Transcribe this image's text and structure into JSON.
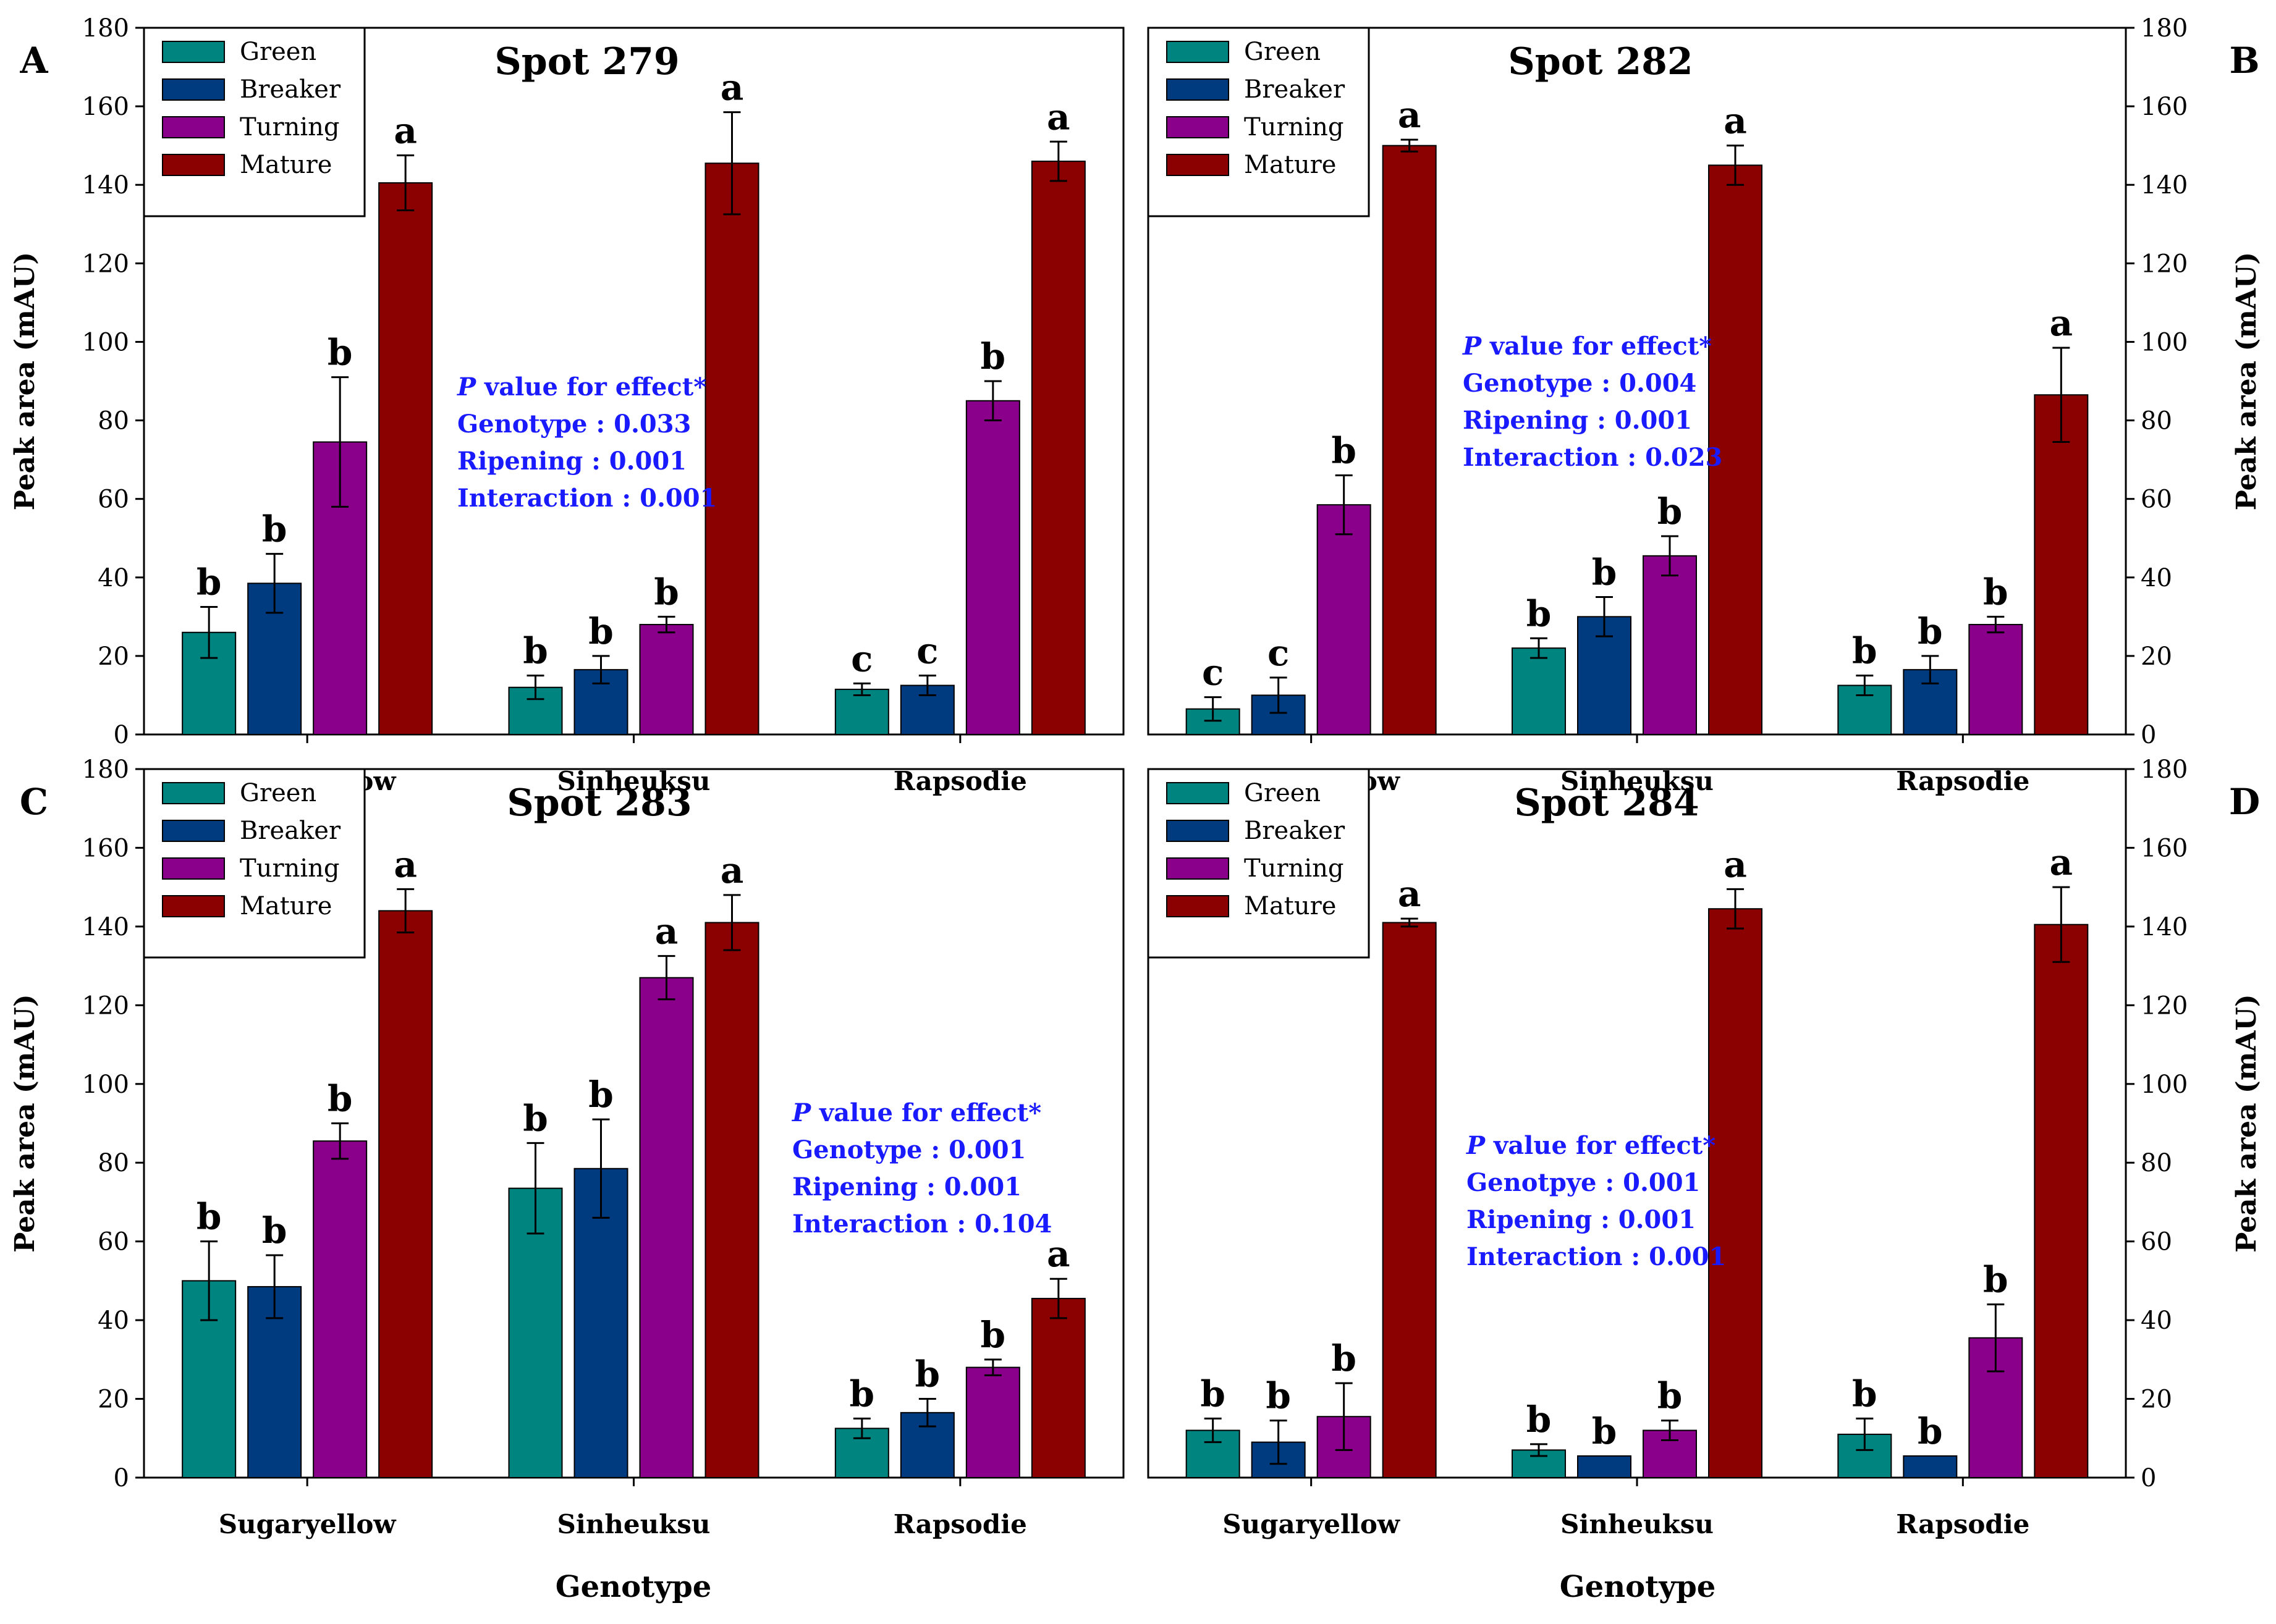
{
  "colors": {
    "Green": "#00847f",
    "Breaker": "#003b80",
    "Turning": "#8b008b",
    "Mature": "#8b0000"
  },
  "legend": [
    "Green",
    "Breaker",
    "Turning",
    "Mature"
  ],
  "x_title": "Genotype",
  "chart_data": [
    {
      "type": "bar",
      "panel": "A",
      "title": "Spot 279",
      "ylabel": "Peak area (mAU)",
      "ylim": [
        0,
        180
      ],
      "yticks": [
        0,
        20,
        40,
        60,
        80,
        100,
        120,
        140,
        160,
        180
      ],
      "categories": [
        "Sugaryellow",
        "Sinheuksu",
        "Rapsodie"
      ],
      "series": [
        {
          "name": "Green",
          "values": [
            26,
            12,
            11.5
          ],
          "errors": [
            6.5,
            3,
            1.5
          ],
          "letters": [
            "b",
            "b",
            "c"
          ]
        },
        {
          "name": "Breaker",
          "values": [
            38.5,
            16.5,
            12.5
          ],
          "errors": [
            7.5,
            3.5,
            2.5
          ],
          "letters": [
            "b",
            "b",
            "c"
          ]
        },
        {
          "name": "Turning",
          "values": [
            74.5,
            28,
            85
          ],
          "errors": [
            16.5,
            2,
            5
          ],
          "letters": [
            "b",
            "b",
            "b"
          ]
        },
        {
          "name": "Mature",
          "values": [
            140.5,
            145.5,
            146
          ],
          "errors": [
            7,
            13,
            5
          ],
          "letters": [
            "a",
            "a",
            "a"
          ]
        }
      ],
      "annotation": {
        "p": "P",
        "heading": " value for effect*",
        "lines": [
          "Genotype   : 0.033",
          "Ripening    : 0.001",
          "Interaction : 0.001"
        ]
      }
    },
    {
      "type": "bar",
      "panel": "B",
      "title": "Spot 282",
      "ylabel": "Peak area (mAU)",
      "ylim": [
        0,
        180
      ],
      "yticks": [
        0,
        20,
        40,
        60,
        80,
        100,
        120,
        140,
        160,
        180
      ],
      "categories": [
        "Sugaryellow",
        "Sinheuksu",
        "Rapsodie"
      ],
      "series": [
        {
          "name": "Green",
          "values": [
            6.5,
            22,
            12.5
          ],
          "errors": [
            3,
            2.5,
            2.5
          ],
          "letters": [
            "c",
            "b",
            "b"
          ]
        },
        {
          "name": "Breaker",
          "values": [
            10,
            30,
            16.5
          ],
          "errors": [
            4.5,
            5,
            3.5
          ],
          "letters": [
            "c",
            "b",
            "b"
          ]
        },
        {
          "name": "Turning",
          "values": [
            58.5,
            45.5,
            28
          ],
          "errors": [
            7.5,
            5,
            2
          ],
          "letters": [
            "b",
            "b",
            "b"
          ]
        },
        {
          "name": "Mature",
          "values": [
            150,
            145,
            86.5
          ],
          "errors": [
            1.5,
            5,
            12
          ],
          "letters": [
            "a",
            "a",
            "a"
          ]
        }
      ],
      "annotation": {
        "p": "P",
        "heading": " value for effect*",
        "lines": [
          "Genotype  : 0.004",
          "Ripening    : 0.001",
          "Interaction : 0.023"
        ]
      }
    },
    {
      "type": "bar",
      "panel": "C",
      "title": "Spot 283",
      "ylabel": "Peak area (mAU)",
      "ylim": [
        0,
        180
      ],
      "yticks": [
        0,
        20,
        40,
        60,
        80,
        100,
        120,
        140,
        160,
        180
      ],
      "categories": [
        "Sugaryellow",
        "Sinheuksu",
        "Rapsodie"
      ],
      "series": [
        {
          "name": "Green",
          "values": [
            50,
            73.5,
            12.5
          ],
          "errors": [
            10,
            11.5,
            2.5
          ],
          "letters": [
            "b",
            "b",
            "b"
          ]
        },
        {
          "name": "Breaker",
          "values": [
            48.5,
            78.5,
            16.5
          ],
          "errors": [
            8,
            12.5,
            3.5
          ],
          "letters": [
            "b",
            "b",
            "b"
          ]
        },
        {
          "name": "Turning",
          "values": [
            85.5,
            127,
            28
          ],
          "errors": [
            4.5,
            5.5,
            2
          ],
          "letters": [
            "b",
            "a",
            "b"
          ]
        },
        {
          "name": "Mature",
          "values": [
            144,
            141,
            45.5
          ],
          "errors": [
            5.5,
            7,
            5
          ],
          "letters": [
            "a",
            "a",
            "a"
          ]
        }
      ],
      "annotation": {
        "p": "P",
        "heading": " value for effect*",
        "lines": [
          "Genotype  : 0.001",
          "Ripening    : 0.001",
          "Interaction : 0.104"
        ]
      }
    },
    {
      "type": "bar",
      "panel": "D",
      "title": "Spot 284",
      "ylabel": "Peak area (mAU)",
      "ylim": [
        0,
        180
      ],
      "yticks": [
        0,
        20,
        40,
        60,
        80,
        100,
        120,
        140,
        160,
        180
      ],
      "categories": [
        "Sugaryellow",
        "Sinheuksu",
        "Rapsodie"
      ],
      "series": [
        {
          "name": "Green",
          "values": [
            12,
            7,
            11
          ],
          "errors": [
            3,
            1.5,
            4
          ],
          "letters": [
            "b",
            "b",
            "b"
          ]
        },
        {
          "name": "Breaker",
          "values": [
            9,
            5.5,
            5.5
          ],
          "errors": [
            5.5,
            0,
            0
          ],
          "letters": [
            "b",
            "b",
            "b"
          ]
        },
        {
          "name": "Turning",
          "values": [
            15.5,
            12,
            35.5
          ],
          "errors": [
            8.5,
            2.5,
            8.5
          ],
          "letters": [
            "b",
            "b",
            "b"
          ]
        },
        {
          "name": "Mature",
          "values": [
            141,
            144.5,
            140.5
          ],
          "errors": [
            1,
            5,
            9.5
          ],
          "letters": [
            "a",
            "a",
            "a"
          ]
        }
      ],
      "annotation": {
        "p": "P",
        "heading": " value for effect*",
        "lines": [
          "Genotpye : 0.001",
          "Ripening    : 0.001",
          "Interaction : 0.001"
        ]
      }
    }
  ]
}
